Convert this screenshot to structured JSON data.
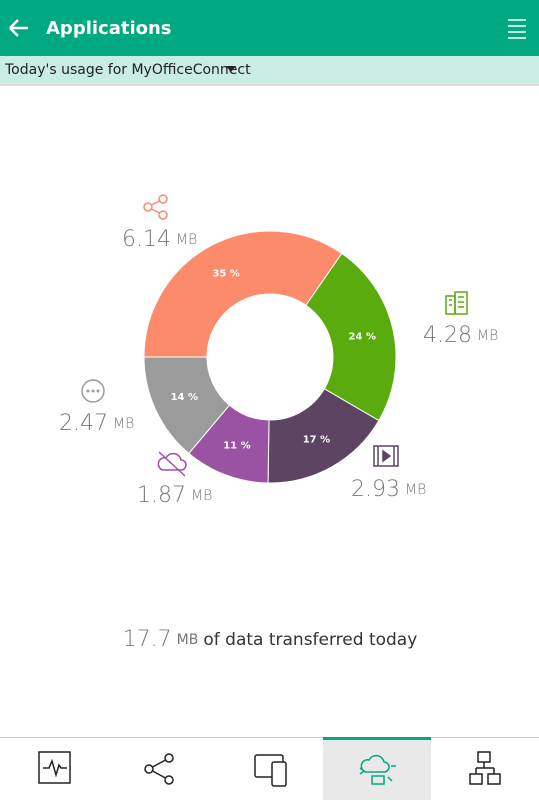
{
  "header": {
    "title": "Applications"
  },
  "subheader": {
    "text": "Today's usage for MyOfficeConnect"
  },
  "chart_data": {
    "type": "donut",
    "values": [
      35,
      24,
      17,
      11,
      14
    ],
    "value_labels": [
      "35 %",
      "24 %",
      "17 %",
      "11 %",
      "14 %"
    ],
    "sizes": [
      6.14,
      4.28,
      2.93,
      1.87,
      2.47
    ],
    "size_unit": "MB",
    "colors": [
      "#fc8b6c",
      "#5aab0d",
      "#5c4462",
      "#9a53a3",
      "#9b9b9b"
    ]
  },
  "total": {
    "value": 17.7,
    "unit": "MB",
    "text": "of data transferred today"
  }
}
